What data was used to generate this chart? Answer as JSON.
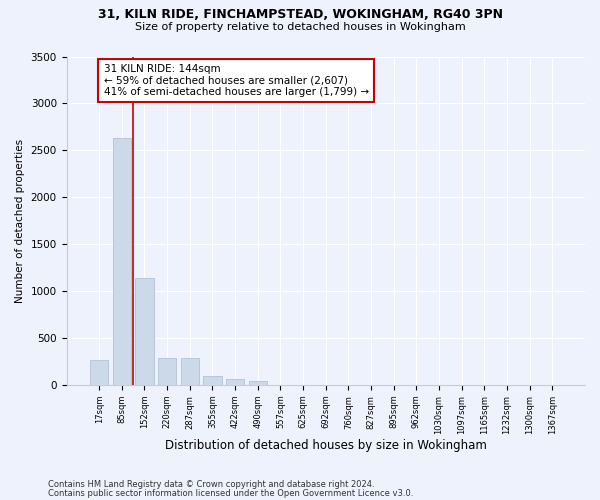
{
  "title1": "31, KILN RIDE, FINCHAMPSTEAD, WOKINGHAM, RG40 3PN",
  "title2": "Size of property relative to detached houses in Wokingham",
  "xlabel": "Distribution of detached houses by size in Wokingham",
  "ylabel": "Number of detached properties",
  "bar_color": "#ccd9e8",
  "bar_edge_color": "#aabbd0",
  "annotation_line_color": "#cc0000",
  "annotation_box_color": "#cc0000",
  "annotation_text": "31 KILN RIDE: 144sqm\n← 59% of detached houses are smaller (2,607)\n41% of semi-detached houses are larger (1,799) →",
  "footnote1": "Contains HM Land Registry data © Crown copyright and database right 2024.",
  "footnote2": "Contains public sector information licensed under the Open Government Licence v3.0.",
  "categories": [
    "17sqm",
    "85sqm",
    "152sqm",
    "220sqm",
    "287sqm",
    "355sqm",
    "422sqm",
    "490sqm",
    "557sqm",
    "625sqm",
    "692sqm",
    "760sqm",
    "827sqm",
    "895sqm",
    "962sqm",
    "1030sqm",
    "1097sqm",
    "1165sqm",
    "1232sqm",
    "1300sqm",
    "1367sqm"
  ],
  "values": [
    270,
    2630,
    1140,
    285,
    285,
    95,
    60,
    45,
    0,
    0,
    0,
    0,
    0,
    0,
    0,
    0,
    0,
    0,
    0,
    0,
    0
  ],
  "ylim": [
    0,
    3500
  ],
  "yticks": [
    0,
    500,
    1000,
    1500,
    2000,
    2500,
    3000,
    3500
  ],
  "background_color": "#eef2fc"
}
